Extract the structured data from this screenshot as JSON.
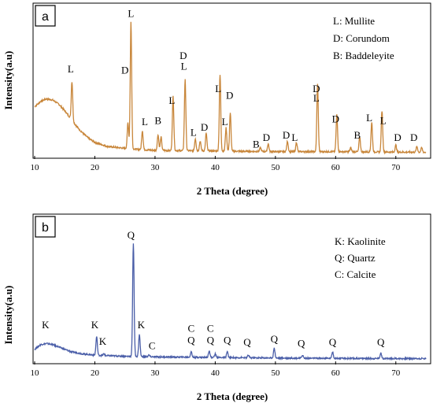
{
  "chart_data": [
    {
      "type": "line",
      "panel_label": "a",
      "xlabel": "2 Theta (degree)",
      "ylabel": "Intensity(a.u)",
      "xlim": [
        10,
        75
      ],
      "ylim": [
        0,
        100
      ],
      "x_ticks": [
        10,
        20,
        30,
        40,
        50,
        60,
        70
      ],
      "color": "#C8863A",
      "legend": [
        "L: Mullite",
        "D: Corundom",
        "B: Baddeleyite"
      ],
      "baseline": [
        [
          10,
          36
        ],
        [
          11,
          40
        ],
        [
          12,
          42
        ],
        [
          13,
          41
        ],
        [
          14,
          38
        ],
        [
          15,
          33
        ],
        [
          16,
          27
        ],
        [
          17,
          21
        ],
        [
          18,
          16
        ],
        [
          19,
          12
        ],
        [
          20,
          9
        ],
        [
          22,
          6
        ],
        [
          24,
          5
        ],
        [
          26,
          4
        ],
        [
          30,
          3
        ],
        [
          40,
          2.5
        ],
        [
          50,
          2
        ],
        [
          60,
          2
        ],
        [
          75,
          1.5
        ]
      ],
      "peaks": [
        {
          "x": 16.2,
          "y": 55
        },
        {
          "x": 25.5,
          "y": 24
        },
        {
          "x": 26.0,
          "y": 100
        },
        {
          "x": 27.9,
          "y": 18
        },
        {
          "x": 30.5,
          "y": 15
        },
        {
          "x": 31.0,
          "y": 13
        },
        {
          "x": 33.0,
          "y": 44
        },
        {
          "x": 35.0,
          "y": 57
        },
        {
          "x": 36.7,
          "y": 12
        },
        {
          "x": 37.5,
          "y": 10
        },
        {
          "x": 38.5,
          "y": 16
        },
        {
          "x": 40.8,
          "y": 60
        },
        {
          "x": 41.8,
          "y": 20
        },
        {
          "x": 42.5,
          "y": 31
        },
        {
          "x": 47.5,
          "y": 5
        },
        {
          "x": 48.8,
          "y": 8
        },
        {
          "x": 52.0,
          "y": 10
        },
        {
          "x": 53.5,
          "y": 9
        },
        {
          "x": 57.0,
          "y": 53
        },
        {
          "x": 60.2,
          "y": 30
        },
        {
          "x": 62.5,
          "y": 5
        },
        {
          "x": 64.0,
          "y": 13
        },
        {
          "x": 66.0,
          "y": 24
        },
        {
          "x": 67.7,
          "y": 33
        },
        {
          "x": 70.0,
          "y": 7
        },
        {
          "x": 73.5,
          "y": 6
        },
        {
          "x": 74.3,
          "y": 5
        }
      ],
      "annotations": [
        {
          "text": "L",
          "x": 16.0,
          "y": 62
        },
        {
          "text": "D",
          "x": 25.0,
          "y": 61
        },
        {
          "text": "L",
          "x": 26.0,
          "y": 104
        },
        {
          "text": "L",
          "x": 28.3,
          "y": 22
        },
        {
          "text": "B",
          "x": 30.5,
          "y": 23
        },
        {
          "text": "L",
          "x": 32.8,
          "y": 38
        },
        {
          "text": "D",
          "x": 34.7,
          "y": 72
        },
        {
          "text": "L",
          "x": 34.8,
          "y": 64
        },
        {
          "text": "L",
          "x": 36.4,
          "y": 14
        },
        {
          "text": "D",
          "x": 38.2,
          "y": 18
        },
        {
          "text": "L",
          "x": 40.5,
          "y": 47
        },
        {
          "text": "L",
          "x": 41.6,
          "y": 22
        },
        {
          "text": "D",
          "x": 42.4,
          "y": 42
        },
        {
          "text": "B",
          "x": 46.8,
          "y": 5
        },
        {
          "text": "D",
          "x": 48.5,
          "y": 10
        },
        {
          "text": "D",
          "x": 51.8,
          "y": 12
        },
        {
          "text": "L",
          "x": 53.2,
          "y": 10
        },
        {
          "text": "D",
          "x": 56.8,
          "y": 47
        },
        {
          "text": "L",
          "x": 56.8,
          "y": 40
        },
        {
          "text": "D",
          "x": 60.0,
          "y": 24
        },
        {
          "text": "B",
          "x": 63.6,
          "y": 12
        },
        {
          "text": "L",
          "x": 65.6,
          "y": 25
        },
        {
          "text": "L",
          "x": 67.9,
          "y": 23
        },
        {
          "text": "D",
          "x": 70.3,
          "y": 10
        },
        {
          "text": "D",
          "x": 73.0,
          "y": 10
        }
      ]
    },
    {
      "type": "line",
      "panel_label": "b",
      "xlabel": "2 Theta (degree)",
      "ylabel": "Intensity(a.u)",
      "xlim": [
        10,
        75
      ],
      "ylim": [
        0,
        100
      ],
      "x_ticks": [
        10,
        20,
        30,
        40,
        50,
        60,
        70
      ],
      "color": "#4A5EA8",
      "legend": [
        "K: Kaolinite",
        "Q: Quartz",
        "C: Calcite"
      ],
      "baseline": [
        [
          10,
          9
        ],
        [
          11,
          13
        ],
        [
          12,
          14
        ],
        [
          13,
          13
        ],
        [
          14,
          11
        ],
        [
          15,
          9
        ],
        [
          16,
          7
        ],
        [
          17,
          6
        ],
        [
          18,
          5
        ],
        [
          20,
          4
        ],
        [
          22,
          3.5
        ],
        [
          25,
          3
        ],
        [
          30,
          2.5
        ],
        [
          40,
          2
        ],
        [
          50,
          1.5
        ],
        [
          60,
          1.2
        ],
        [
          75,
          1
        ]
      ],
      "peaks": [
        {
          "x": 20.3,
          "y": 20
        },
        {
          "x": 21.5,
          "y": 5
        },
        {
          "x": 26.4,
          "y": 100
        },
        {
          "x": 27.4,
          "y": 22
        },
        {
          "x": 29.0,
          "y": 4
        },
        {
          "x": 36.0,
          "y": 7
        },
        {
          "x": 39.0,
          "y": 8
        },
        {
          "x": 40.0,
          "y": 5
        },
        {
          "x": 42.0,
          "y": 7
        },
        {
          "x": 45.5,
          "y": 4
        },
        {
          "x": 49.8,
          "y": 10
        },
        {
          "x": 54.5,
          "y": 4
        },
        {
          "x": 59.5,
          "y": 7
        },
        {
          "x": 67.5,
          "y": 6
        }
      ],
      "annotations": [
        {
          "text": "K",
          "x": 11.8,
          "y": 27
        },
        {
          "text": "K",
          "x": 20.0,
          "y": 27
        },
        {
          "text": "K",
          "x": 21.3,
          "y": 13
        },
        {
          "text": "Q",
          "x": 26.0,
          "y": 104
        },
        {
          "text": "K",
          "x": 27.7,
          "y": 27
        },
        {
          "text": "C",
          "x": 29.5,
          "y": 9
        },
        {
          "text": "C",
          "x": 36.0,
          "y": 24
        },
        {
          "text": "Q",
          "x": 36.0,
          "y": 14
        },
        {
          "text": "C",
          "x": 39.2,
          "y": 24
        },
        {
          "text": "Q",
          "x": 39.2,
          "y": 14
        },
        {
          "text": "Q",
          "x": 42.0,
          "y": 14
        },
        {
          "text": "Q",
          "x": 45.3,
          "y": 12
        },
        {
          "text": "Q",
          "x": 49.8,
          "y": 15
        },
        {
          "text": "Q",
          "x": 54.3,
          "y": 11
        },
        {
          "text": "Q",
          "x": 59.5,
          "y": 12
        },
        {
          "text": "Q",
          "x": 67.5,
          "y": 12
        }
      ]
    }
  ]
}
